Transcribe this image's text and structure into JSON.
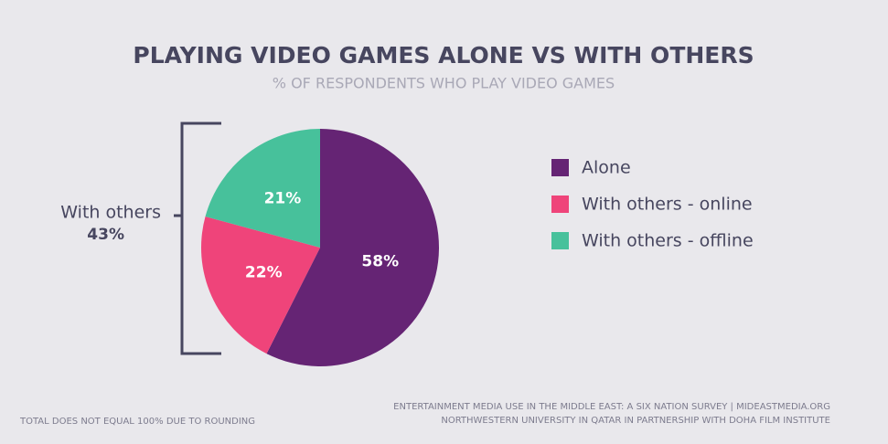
{
  "chart_data": {
    "type": "pie",
    "title": "PLAYING VIDEO GAMES ALONE VS WITH OTHERS",
    "subtitle": "% OF RESPONDENTS WHO PLAY VIDEO GAMES",
    "categories": [
      "Alone",
      "With others - online",
      "With others - offline"
    ],
    "values": [
      58,
      22,
      21
    ],
    "value_labels": [
      "58%",
      "22%",
      "21%"
    ],
    "colors": [
      "#652474",
      "#ef447a",
      "#47c19b"
    ],
    "legend": "right",
    "annotation": {
      "text": "With others",
      "value": "43%"
    },
    "footnote": "TOTAL DOES NOT EQUAL 100% DUE TO ROUNDING",
    "source": [
      "ENTERTAINMENT MEDIA USE IN THE MIDDLE EAST: A SIX NATION SURVEY | MIDEASTMEDIA.ORG",
      "NORTHWESTERN UNIVERSITY IN QATAR IN PARTNERSHIP WITH DOHA FILM INSTITUTE"
    ]
  }
}
